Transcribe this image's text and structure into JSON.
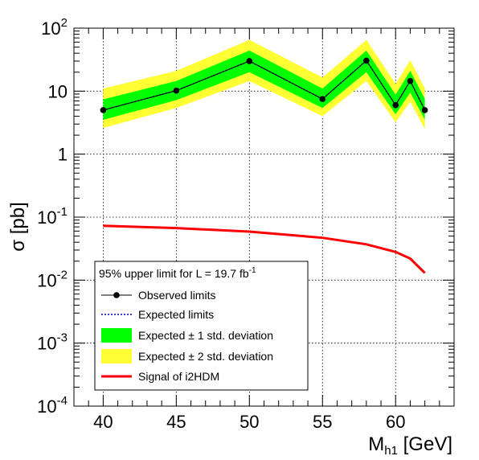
{
  "chart_data": {
    "type": "line",
    "title": "",
    "xlabel": {
      "main": "M",
      "sub": "h1",
      "rest": " [GeV]"
    },
    "ylabel": "σ [pb]",
    "xlim": [
      38,
      64
    ],
    "ylim": [
      0.0001,
      100
    ],
    "y_scale": "log",
    "grid": true,
    "legend_position": "bottom-left",
    "x_ticks": [
      {
        "value": 40,
        "label": "40"
      },
      {
        "value": 45,
        "label": "45"
      },
      {
        "value": 50,
        "label": "50"
      },
      {
        "value": 55,
        "label": "55"
      },
      {
        "value": 60,
        "label": "60"
      }
    ],
    "y_ticks": [
      {
        "value": 100,
        "base": "10",
        "exp": "2"
      },
      {
        "value": 10,
        "base": "10",
        "exp": ""
      },
      {
        "value": 1,
        "base": "1",
        "exp": ""
      },
      {
        "value": 0.1,
        "base": "10",
        "exp": "-1"
      },
      {
        "value": 0.01,
        "base": "10",
        "exp": "-2"
      },
      {
        "value": 0.001,
        "base": "10",
        "exp": "-3"
      },
      {
        "value": 0.0001,
        "base": "10",
        "exp": "-4"
      }
    ],
    "x": [
      40,
      45,
      50,
      55,
      58,
      60,
      61,
      62
    ],
    "observed": [
      5.0,
      10.2,
      30.0,
      7.5,
      30.5,
      6.0,
      14.5,
      5.0
    ],
    "expected": [
      5.0,
      10.2,
      30.0,
      7.5,
      30.5,
      6.0,
      14.5,
      5.0
    ],
    "band1_low": [
      3.5,
      7.2,
      20.0,
      5.4,
      20.0,
      4.3,
      9.5,
      3.5
    ],
    "band1_high": [
      7.4,
      14.5,
      44.0,
      11.0,
      44.0,
      8.8,
      21.0,
      7.5
    ],
    "band2_low": [
      2.6,
      5.4,
      14.5,
      4.0,
      14.5,
      3.2,
      6.8,
      2.5
    ],
    "band2_high": [
      11.0,
      21.0,
      65.0,
      16.5,
      65.0,
      13.0,
      31.0,
      11.0
    ],
    "signal": {
      "x": [
        40,
        45,
        50,
        55,
        58,
        60,
        61,
        62
      ],
      "y": [
        0.073,
        0.067,
        0.059,
        0.047,
        0.037,
        0.028,
        0.022,
        0.013
      ]
    },
    "legend": {
      "header": "95% upper limit for L = 19.7 fb",
      "header_sup": "-1",
      "items": [
        {
          "label": "Observed limits",
          "kind": "observed"
        },
        {
          "label": "Expected limits",
          "kind": "expected"
        },
        {
          "label": "Expected ± 1 std. deviation",
          "kind": "band1"
        },
        {
          "label": "Expected ± 2 std. deviation",
          "kind": "band2"
        },
        {
          "label": "Signal of i2HDM",
          "kind": "signal"
        }
      ]
    },
    "colors": {
      "band1": "#00ff00",
      "band2": "#ffff33",
      "observed": "#000000",
      "expected": "#0000cc",
      "signal": "#ff0000"
    }
  }
}
